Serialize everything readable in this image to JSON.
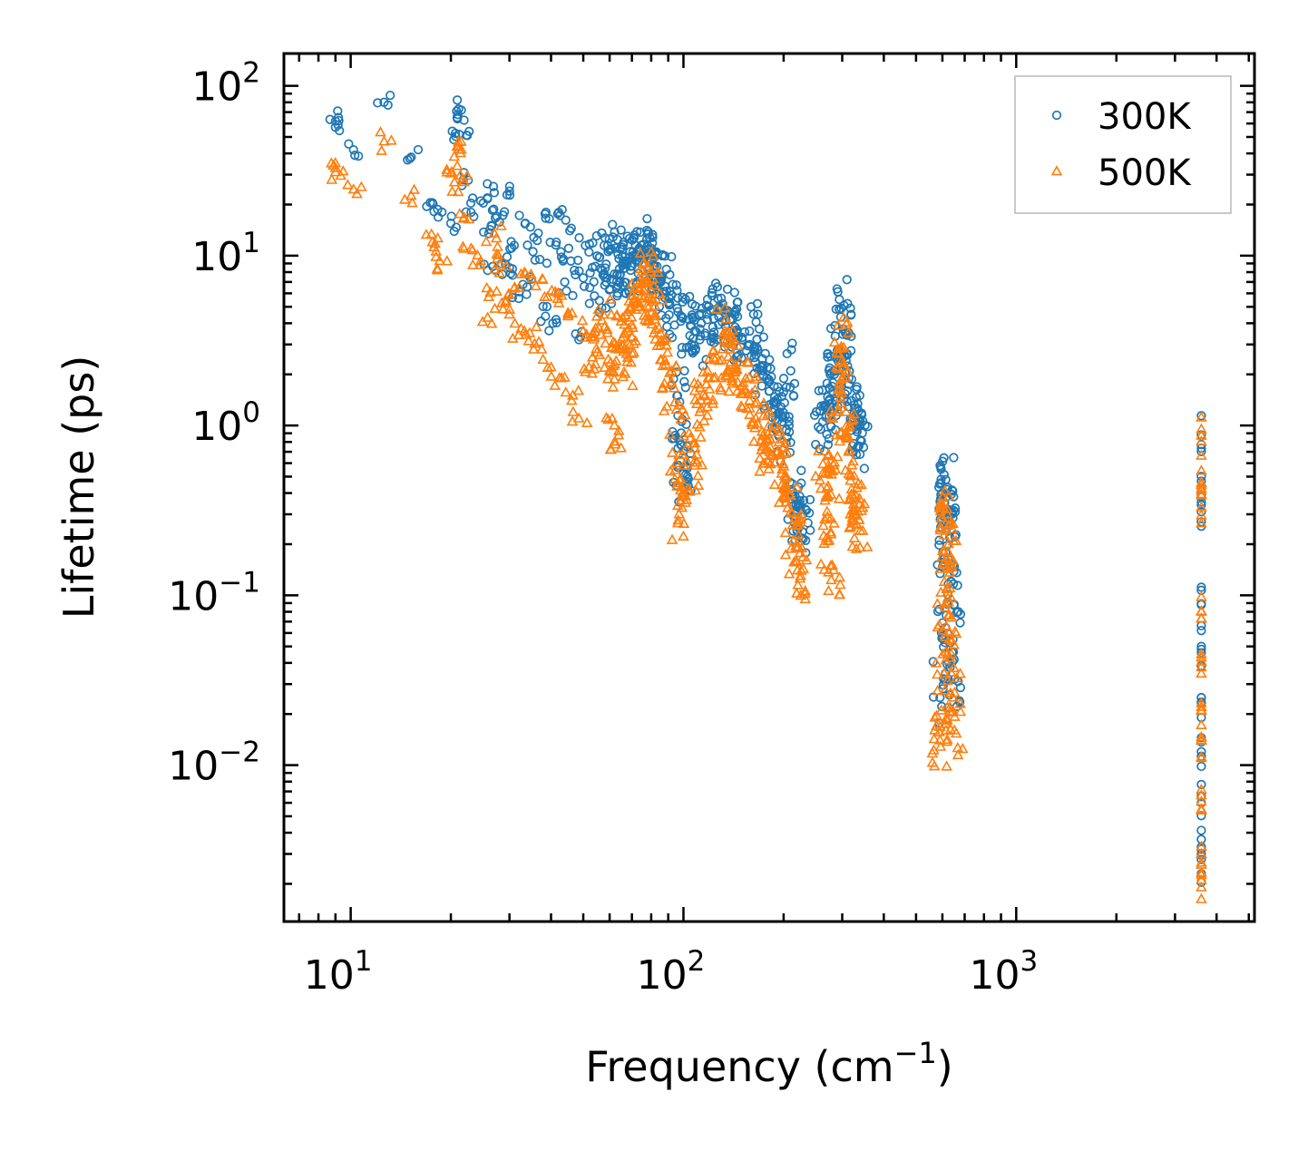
{
  "chart_data": {
    "type": "scatter",
    "xlabel": "Frequency (cm",
    "xlabel_sup": "−1",
    "xlabel_tail": ")",
    "ylabel": "Lifetime (ps)",
    "xscale": "log",
    "yscale": "log",
    "xlim": [
      6.3,
      5200
    ],
    "ylim": [
      0.0012,
      155
    ],
    "x_ticks": [
      {
        "value": 10,
        "base": "10",
        "exp": "1"
      },
      {
        "value": 100,
        "base": "10",
        "exp": "2"
      },
      {
        "value": 1000,
        "base": "10",
        "exp": "3"
      }
    ],
    "y_ticks": [
      {
        "value": 100,
        "base": "10",
        "exp": "2"
      },
      {
        "value": 10,
        "base": "10",
        "exp": "1"
      },
      {
        "value": 1,
        "base": "10",
        "exp": "0"
      },
      {
        "value": 0.1,
        "base": "10",
        "exp": "−1"
      },
      {
        "value": 0.01,
        "base": "10",
        "exp": "−2"
      }
    ],
    "legend_position": "top-right",
    "series": [
      {
        "name": "300K",
        "marker": "circle",
        "color": "#1f77b4",
        "points": [
          [
            9,
            62
          ],
          [
            9,
            57
          ],
          [
            10.2,
            42
          ],
          [
            12.6,
            80
          ],
          [
            15.2,
            38
          ],
          [
            17.6,
            20.5
          ],
          [
            17.8,
            18.2
          ],
          [
            20,
            15.5
          ],
          [
            20.2,
            54
          ],
          [
            21.1,
            73
          ],
          [
            21.5,
            72
          ],
          [
            21.8,
            28
          ],
          [
            22.4,
            51
          ],
          [
            23,
            18
          ],
          [
            24.6,
            21
          ],
          [
            25.8,
            8.2
          ],
          [
            26,
            13.5
          ],
          [
            27,
            23.5
          ],
          [
            27.5,
            17
          ],
          [
            28,
            15.8
          ],
          [
            29.2,
            8.9
          ],
          [
            29.5,
            22.8
          ],
          [
            30,
            8.5
          ],
          [
            31,
            11.5
          ],
          [
            32,
            5.6
          ],
          [
            33.5,
            15.5
          ],
          [
            34.5,
            7.5
          ],
          [
            35.5,
            12.8
          ],
          [
            37,
            9.5
          ],
          [
            38.5,
            4.4
          ],
          [
            39.5,
            16.5
          ],
          [
            40.5,
            4
          ],
          [
            41.5,
            12
          ],
          [
            42.2,
            18
          ],
          [
            43,
            9.8
          ],
          [
            44.5,
            6.2
          ],
          [
            46,
            14.5
          ],
          [
            47,
            8.2
          ],
          [
            48.5,
            3.2
          ],
          [
            50,
            7.4
          ],
          [
            52,
            10.5
          ],
          [
            54,
            5.8
          ],
          [
            56,
            9.8
          ],
          [
            58,
            6.7
          ],
          [
            60,
            10.8
          ],
          [
            62,
            7.8
          ],
          [
            64,
            9.6
          ],
          [
            66,
            8.4
          ],
          [
            68,
            9.3
          ],
          [
            70,
            8.7
          ],
          [
            72,
            10.2
          ],
          [
            74,
            9.7
          ],
          [
            76,
            11.7
          ],
          [
            78,
            10.3
          ],
          [
            80,
            9.4
          ],
          [
            82,
            8.7
          ],
          [
            85,
            7.6
          ],
          [
            88,
            6.6
          ],
          [
            91,
            5.2
          ],
          [
            94,
            3.9
          ],
          [
            96,
            1.5
          ],
          [
            97,
            0.82
          ],
          [
            98,
            0.62
          ],
          [
            100,
            0.52
          ],
          [
            104,
            4.2
          ],
          [
            108,
            3.6
          ],
          [
            112,
            3.2
          ],
          [
            118,
            4.2
          ],
          [
            123,
            4.8
          ],
          [
            128,
            5
          ],
          [
            133,
            4.6
          ],
          [
            138,
            4.2
          ],
          [
            143,
            3.8
          ],
          [
            150,
            3.3
          ],
          [
            158,
            3.6
          ],
          [
            165,
            2.6
          ],
          [
            172,
            2.2
          ],
          [
            178,
            1.9
          ],
          [
            185,
            1.2
          ],
          [
            190,
            1.35
          ],
          [
            198,
            1.05
          ],
          [
            205,
            0.85
          ],
          [
            210,
            2.1
          ],
          [
            214,
            0.38
          ],
          [
            218,
            0.34
          ],
          [
            222,
            0.25
          ],
          [
            228,
            0.3
          ],
          [
            262,
            1.05
          ],
          [
            268,
            1.15
          ],
          [
            274,
            1.4
          ],
          [
            280,
            1.7
          ],
          [
            286,
            2.1
          ],
          [
            292,
            2.6
          ],
          [
            298,
            4.9
          ],
          [
            302,
            3.7
          ],
          [
            308,
            2.4
          ],
          [
            314,
            1.9
          ],
          [
            320,
            1.4
          ],
          [
            326,
            1.1
          ],
          [
            332,
            0.95
          ],
          [
            340,
            0.82
          ],
          [
            590,
            0.025
          ],
          [
            596,
            0.06
          ],
          [
            602,
            0.18
          ],
          [
            608,
            0.35
          ],
          [
            614,
            0.48
          ],
          [
            620,
            0.42
          ],
          [
            626,
            0.32
          ],
          [
            632,
            0.22
          ],
          [
            638,
            0.12
          ],
          [
            645,
            0.055
          ],
          [
            652,
            0.032
          ],
          [
            3600,
            0.88
          ],
          [
            3600,
            0.47
          ],
          [
            3600,
            0.34
          ],
          [
            3600,
            0.088
          ],
          [
            3600,
            0.05
          ],
          [
            3600,
            0.025
          ],
          [
            3600,
            0.012
          ],
          [
            3600,
            0.006
          ],
          [
            3600,
            0.0032
          ],
          [
            3600,
            0.0023
          ]
        ]
      },
      {
        "name": "500K",
        "marker": "triangle",
        "color": "#ff7f0e",
        "points": [
          [
            9,
            35
          ],
          [
            9,
            31
          ],
          [
            10.2,
            24.5
          ],
          [
            12.6,
            47
          ],
          [
            15.2,
            22.5
          ],
          [
            17.6,
            12
          ],
          [
            17.8,
            11.2
          ],
          [
            18.5,
            9.3
          ],
          [
            20,
            30.5
          ],
          [
            20.5,
            27
          ],
          [
            21.1,
            44
          ],
          [
            21.5,
            42
          ],
          [
            21.8,
            16.5
          ],
          [
            22.4,
            29.5
          ],
          [
            23,
            11
          ],
          [
            24.6,
            9.3
          ],
          [
            25.8,
            4.3
          ],
          [
            26,
            5.7
          ],
          [
            27,
            13.5
          ],
          [
            27.5,
            10.2
          ],
          [
            28,
            7.9
          ],
          [
            29.2,
            5.3
          ],
          [
            30,
            4.5
          ],
          [
            31,
            6.4
          ],
          [
            32,
            3.4
          ],
          [
            33.5,
            7.8
          ],
          [
            34.5,
            3.5
          ],
          [
            36,
            6.6
          ],
          [
            37.5,
            2.8
          ],
          [
            39,
            5.7
          ],
          [
            40,
            2.2
          ],
          [
            42,
            6
          ],
          [
            43,
            1.9
          ],
          [
            45,
            4.6
          ],
          [
            46.5,
            1.5
          ],
          [
            48.5,
            1.1
          ],
          [
            50,
            3.6
          ],
          [
            52,
            2.2
          ],
          [
            54,
            3.3
          ],
          [
            56,
            2.6
          ],
          [
            58,
            3.8
          ],
          [
            60,
            2.1
          ],
          [
            62,
            1
          ],
          [
            64,
            2.8
          ],
          [
            66,
            3.3
          ],
          [
            68,
            2.5
          ],
          [
            70,
            3.9
          ],
          [
            72,
            4.8
          ],
          [
            74,
            5.6
          ],
          [
            76,
            6.2
          ],
          [
            78,
            7.1
          ],
          [
            80,
            5.6
          ],
          [
            82,
            4.2
          ],
          [
            85,
            3.1
          ],
          [
            88,
            2.4
          ],
          [
            92,
            1.8
          ],
          [
            95,
            0.6
          ],
          [
            97,
            0.3
          ],
          [
            99,
            0.38
          ],
          [
            104,
            0.9
          ],
          [
            108,
            0.58
          ],
          [
            112,
            1.2
          ],
          [
            118,
            1.4
          ],
          [
            123,
            1.9
          ],
          [
            128,
            2.4
          ],
          [
            133,
            3.6
          ],
          [
            138,
            2.8
          ],
          [
            143,
            2.2
          ],
          [
            150,
            1.7
          ],
          [
            158,
            1.4
          ],
          [
            165,
            1.1
          ],
          [
            172,
            0.82
          ],
          [
            178,
            0.72
          ],
          [
            185,
            0.66
          ],
          [
            192,
            0.7
          ],
          [
            198,
            0.55
          ],
          [
            205,
            0.42
          ],
          [
            210,
            0.31
          ],
          [
            214,
            0.21
          ],
          [
            220,
            0.14
          ],
          [
            225,
            0.13
          ],
          [
            262,
            0.52
          ],
          [
            268,
            0.38
          ],
          [
            274,
            0.21
          ],
          [
            280,
            0.15
          ],
          [
            286,
            0.55
          ],
          [
            292,
            1.2
          ],
          [
            298,
            2.9
          ],
          [
            302,
            1.9
          ],
          [
            308,
            1.2
          ],
          [
            314,
            0.7
          ],
          [
            320,
            0.42
          ],
          [
            326,
            0.32
          ],
          [
            332,
            0.26
          ],
          [
            340,
            0.24
          ],
          [
            590,
            0.014
          ],
          [
            596,
            0.021
          ],
          [
            602,
            0.045
          ],
          [
            608,
            0.12
          ],
          [
            614,
            0.24
          ],
          [
            620,
            0.3
          ],
          [
            626,
            0.2
          ],
          [
            632,
            0.11
          ],
          [
            638,
            0.045
          ],
          [
            645,
            0.025
          ],
          [
            652,
            0.016
          ],
          [
            3600,
            0.87
          ],
          [
            3600,
            0.46
          ],
          [
            3600,
            0.33
          ],
          [
            3600,
            0.08
          ],
          [
            3600,
            0.045
          ],
          [
            3600,
            0.022
          ],
          [
            3600,
            0.011
          ],
          [
            3600,
            0.0055
          ],
          [
            3600,
            0.003
          ],
          [
            3600,
            0.0021
          ]
        ]
      }
    ]
  }
}
